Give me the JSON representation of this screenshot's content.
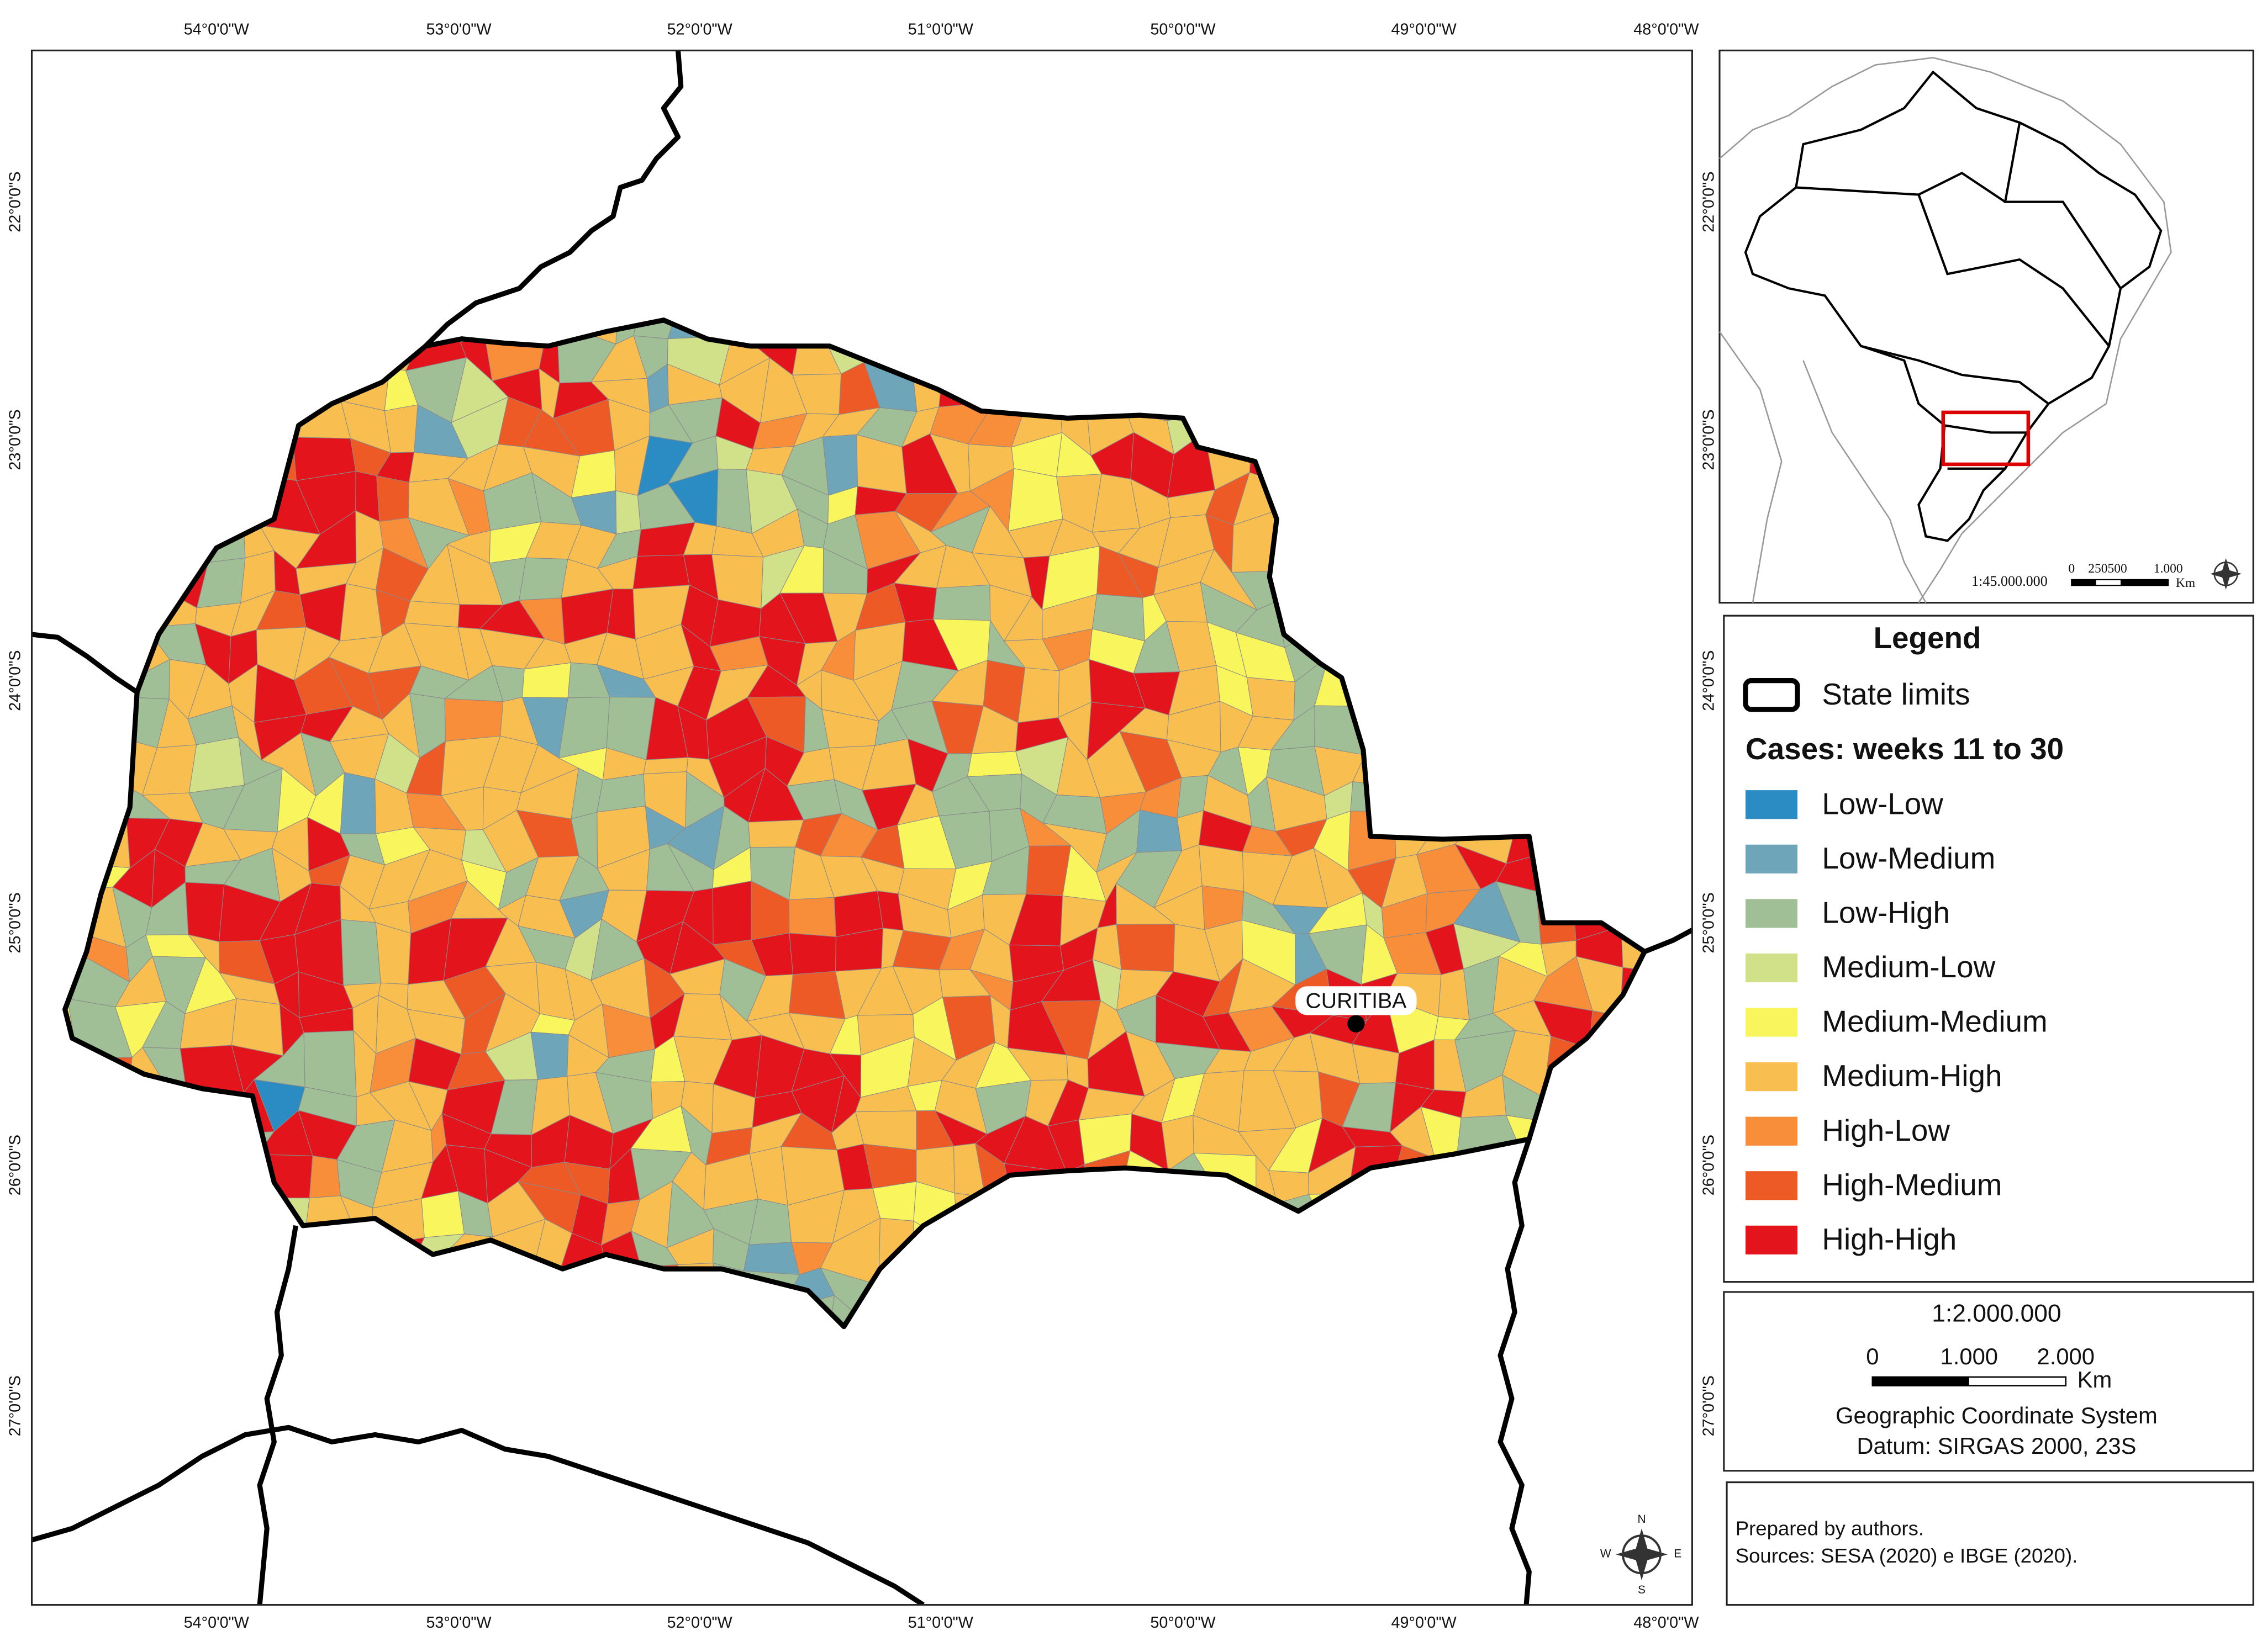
{
  "map": {
    "longitude_labels": [
      "54°0'0\"W",
      "53°0'0\"W",
      "52°0'0\"W",
      "51°0'0\"W",
      "50°0'0\"W",
      "49°0'0\"W",
      "48°0'0\"W"
    ],
    "latitude_labels": [
      "22°0'0\"S",
      "23°0'0\"S",
      "24°0'0\"S",
      "25°0'0\"S",
      "26°0'0\"S",
      "27°0'0\"S"
    ],
    "city": "CURITIBA"
  },
  "inset": {
    "scale": "1:45.000.000",
    "scale_ticks": [
      "0",
      "250500",
      "1.000"
    ],
    "scale_unit": "Km"
  },
  "legend": {
    "title": "Legend",
    "state_limits": "State limits",
    "subtitle": "Cases: weeks 11 to 30",
    "items": [
      {
        "label": "Low-Low",
        "color": "#2b8cc4"
      },
      {
        "label": "Low-Medium",
        "color": "#6fa5b8"
      },
      {
        "label": "Low-High",
        "color": "#a0bf96"
      },
      {
        "label": "Medium-Low",
        "color": "#d0e18a"
      },
      {
        "label": "Medium-Medium",
        "color": "#f8f65c"
      },
      {
        "label": "Medium-High",
        "color": "#f8bf50"
      },
      {
        "label": "High-Low",
        "color": "#f88d3a"
      },
      {
        "label": "High-Medium",
        "color": "#ee5a26"
      },
      {
        "label": "High-High",
        "color": "#e3141b"
      }
    ]
  },
  "scale_box": {
    "ratio": "1:2.000.000",
    "ticks": [
      "0",
      "1.000",
      "2.000"
    ],
    "unit": "Km",
    "coordinate_system": "Geographic Coordinate System",
    "datum": "Datum: SIRGAS 2000, 23S"
  },
  "notes": [
    "Prepared by authors.",
    "Sources: SESA (2020) e IBGE (2020)."
  ],
  "compass": [
    "N",
    "E",
    "S",
    "W"
  ]
}
